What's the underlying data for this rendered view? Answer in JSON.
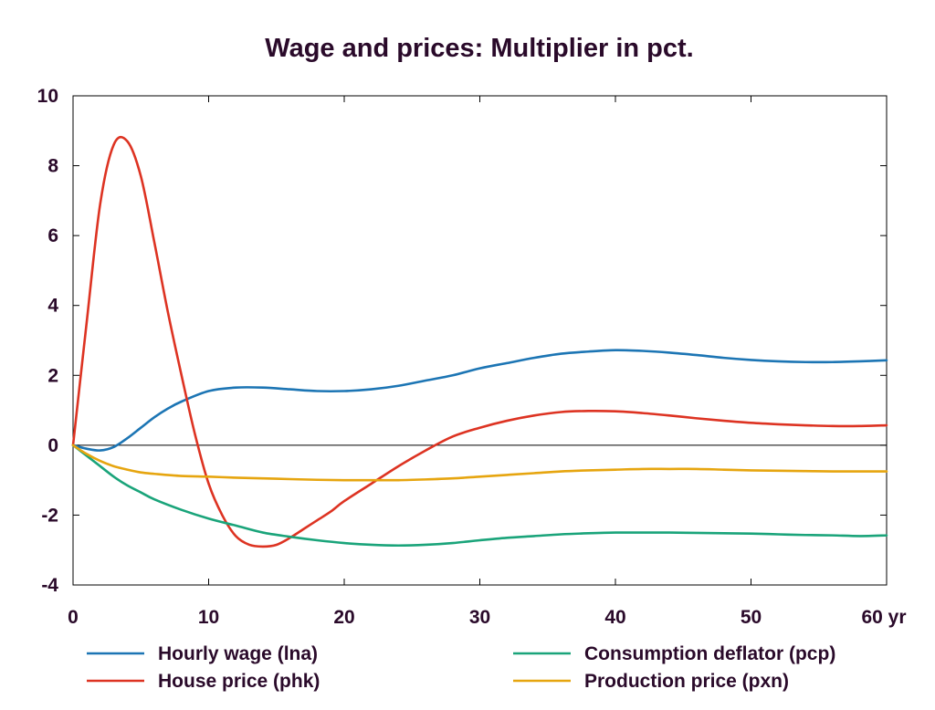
{
  "chart_data": {
    "type": "line",
    "title": "Wage and prices: Multiplier in pct.",
    "x_tick_labels": [
      "0",
      "10",
      "20",
      "30",
      "40",
      "50",
      "60 yr"
    ],
    "y_tick_labels": [
      "10",
      "8",
      "6",
      "4",
      "2",
      "0",
      "-2",
      "-4"
    ],
    "xlim": [
      0,
      60
    ],
    "ylim": [
      -4,
      10
    ],
    "grid": false,
    "zero_line": true,
    "legend_position": "bottom",
    "series": [
      {
        "name": "Hourly wage (lna)",
        "color": "#1c75b4",
        "x": [
          0,
          1,
          2,
          3,
          4,
          5,
          6,
          7,
          8,
          10,
          12,
          14,
          16,
          18,
          20,
          22,
          24,
          26,
          28,
          30,
          32,
          34,
          36,
          38,
          40,
          42,
          44,
          46,
          48,
          50,
          52,
          54,
          56,
          58,
          60
        ],
        "y": [
          0,
          -0.1,
          -0.15,
          -0.05,
          0.2,
          0.5,
          0.8,
          1.05,
          1.25,
          1.55,
          1.65,
          1.65,
          1.6,
          1.55,
          1.55,
          1.6,
          1.7,
          1.85,
          2.0,
          2.2,
          2.35,
          2.5,
          2.62,
          2.68,
          2.72,
          2.7,
          2.65,
          2.58,
          2.5,
          2.44,
          2.4,
          2.38,
          2.38,
          2.4,
          2.43
        ]
      },
      {
        "name": "House price (phk)",
        "color": "#dd3322",
        "x": [
          0,
          1,
          2,
          3,
          4,
          5,
          6,
          7,
          8,
          9,
          10,
          11,
          12,
          13,
          14,
          15,
          16,
          17,
          18,
          19,
          20,
          22,
          24,
          26,
          28,
          30,
          32,
          34,
          36,
          38,
          40,
          42,
          44,
          46,
          48,
          50,
          52,
          54,
          56,
          58,
          60
        ],
        "y": [
          0,
          3.5,
          6.9,
          8.6,
          8.7,
          7.7,
          5.8,
          3.8,
          2.0,
          0.3,
          -1.1,
          -2.0,
          -2.6,
          -2.85,
          -2.9,
          -2.85,
          -2.65,
          -2.4,
          -2.15,
          -1.9,
          -1.6,
          -1.1,
          -0.6,
          -0.15,
          0.25,
          0.5,
          0.7,
          0.85,
          0.95,
          0.98,
          0.97,
          0.92,
          0.85,
          0.77,
          0.7,
          0.64,
          0.6,
          0.57,
          0.55,
          0.55,
          0.57
        ]
      },
      {
        "name": "Consumption deflator (pcp)",
        "color": "#1aa47a",
        "x": [
          0,
          1,
          2,
          3,
          4,
          5,
          6,
          8,
          10,
          12,
          14,
          16,
          18,
          20,
          22,
          24,
          26,
          28,
          30,
          32,
          34,
          36,
          38,
          40,
          42,
          44,
          46,
          48,
          50,
          52,
          54,
          56,
          58,
          60
        ],
        "y": [
          0,
          -0.3,
          -0.6,
          -0.9,
          -1.15,
          -1.35,
          -1.55,
          -1.85,
          -2.1,
          -2.3,
          -2.5,
          -2.62,
          -2.72,
          -2.8,
          -2.85,
          -2.87,
          -2.85,
          -2.8,
          -2.72,
          -2.65,
          -2.6,
          -2.55,
          -2.52,
          -2.5,
          -2.5,
          -2.5,
          -2.51,
          -2.52,
          -2.53,
          -2.55,
          -2.57,
          -2.58,
          -2.6,
          -2.58
        ]
      },
      {
        "name": "Production price (pxn)",
        "color": "#e6a50f",
        "x": [
          0,
          1,
          2,
          3,
          4,
          5,
          6,
          8,
          10,
          12,
          14,
          16,
          18,
          20,
          22,
          24,
          26,
          28,
          30,
          32,
          34,
          36,
          38,
          40,
          42,
          44,
          46,
          48,
          50,
          52,
          54,
          56,
          58,
          60
        ],
        "y": [
          0,
          -0.25,
          -0.45,
          -0.6,
          -0.7,
          -0.78,
          -0.82,
          -0.88,
          -0.9,
          -0.93,
          -0.95,
          -0.97,
          -0.99,
          -1.0,
          -1.0,
          -1.0,
          -0.98,
          -0.95,
          -0.9,
          -0.85,
          -0.8,
          -0.75,
          -0.72,
          -0.7,
          -0.68,
          -0.68,
          -0.68,
          -0.7,
          -0.72,
          -0.73,
          -0.74,
          -0.75,
          -0.75,
          -0.75
        ]
      }
    ]
  }
}
